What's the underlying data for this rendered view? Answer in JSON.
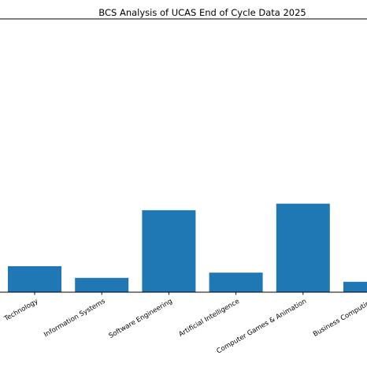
{
  "chart_data": {
    "type": "bar",
    "title": "BCS Analysis of UCAS End of Cycle Data 2025",
    "xlabel": "",
    "ylabel": "",
    "categories": [
      "Technology",
      "Information Systems",
      "Software Engineering",
      "Artificial Intelligence",
      "Computer Games & Animation",
      "Business Computing"
    ],
    "values": [
      10,
      5.5,
      31.5,
      7.5,
      34,
      4
    ],
    "ylim": [
      0,
      105
    ],
    "bar_color": "#1f77b4",
    "grid": false,
    "legend": "none"
  }
}
